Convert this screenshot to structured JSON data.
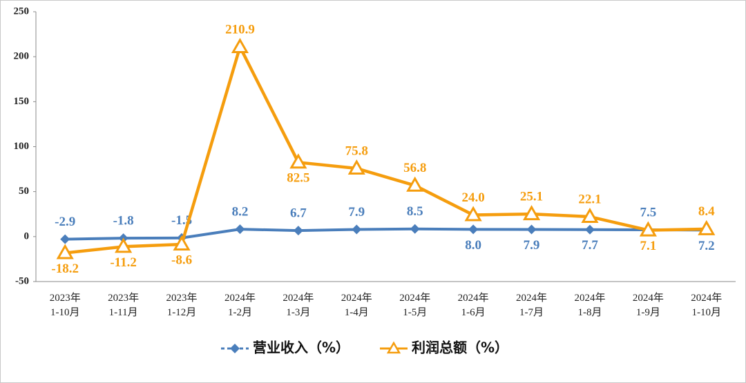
{
  "chart_data": {
    "type": "line",
    "categories": [
      "2023年\n1-10月",
      "2023年\n1-11月",
      "2023年\n1-12月",
      "2024年\n1-2月",
      "2024年\n1-3月",
      "2024年\n1-4月",
      "2024年\n1-5月",
      "2024年\n1-6月",
      "2024年\n1-7月",
      "2024年\n1-8月",
      "2024年\n1-9月",
      "2024年\n1-10月"
    ],
    "series": [
      {
        "name": "营业收入（%）",
        "color": "#4a7ebb",
        "marker": "diamond",
        "values": [
          -2.9,
          -1.8,
          -1.5,
          8.2,
          6.7,
          7.9,
          8.5,
          8.0,
          7.9,
          7.7,
          7.5,
          7.2
        ],
        "value_labels": [
          "-2.9",
          "-1.8",
          "-1.5",
          "8.2",
          "6.7",
          "7.9",
          "8.5",
          "8.0",
          "7.9",
          "7.7",
          "7.5",
          "7.2"
        ]
      },
      {
        "name": "利润总额（%）",
        "color": "#f59d0e",
        "marker": "triangle",
        "values": [
          -18.2,
          -11.2,
          -8.6,
          210.9,
          82.5,
          75.8,
          56.8,
          24.0,
          25.1,
          22.1,
          7.1,
          8.4
        ],
        "value_labels": [
          "-18.2",
          "-11.2",
          "-8.6",
          "210.9",
          "82.5",
          "75.8",
          "56.8",
          "24.0",
          "25.1",
          "22.1",
          "7.1",
          "8.4"
        ]
      }
    ],
    "ylim": [
      -50,
      250
    ],
    "yticks": [
      -50,
      0,
      50,
      100,
      150,
      200,
      250
    ],
    "grid": false,
    "legend": "bottom"
  }
}
